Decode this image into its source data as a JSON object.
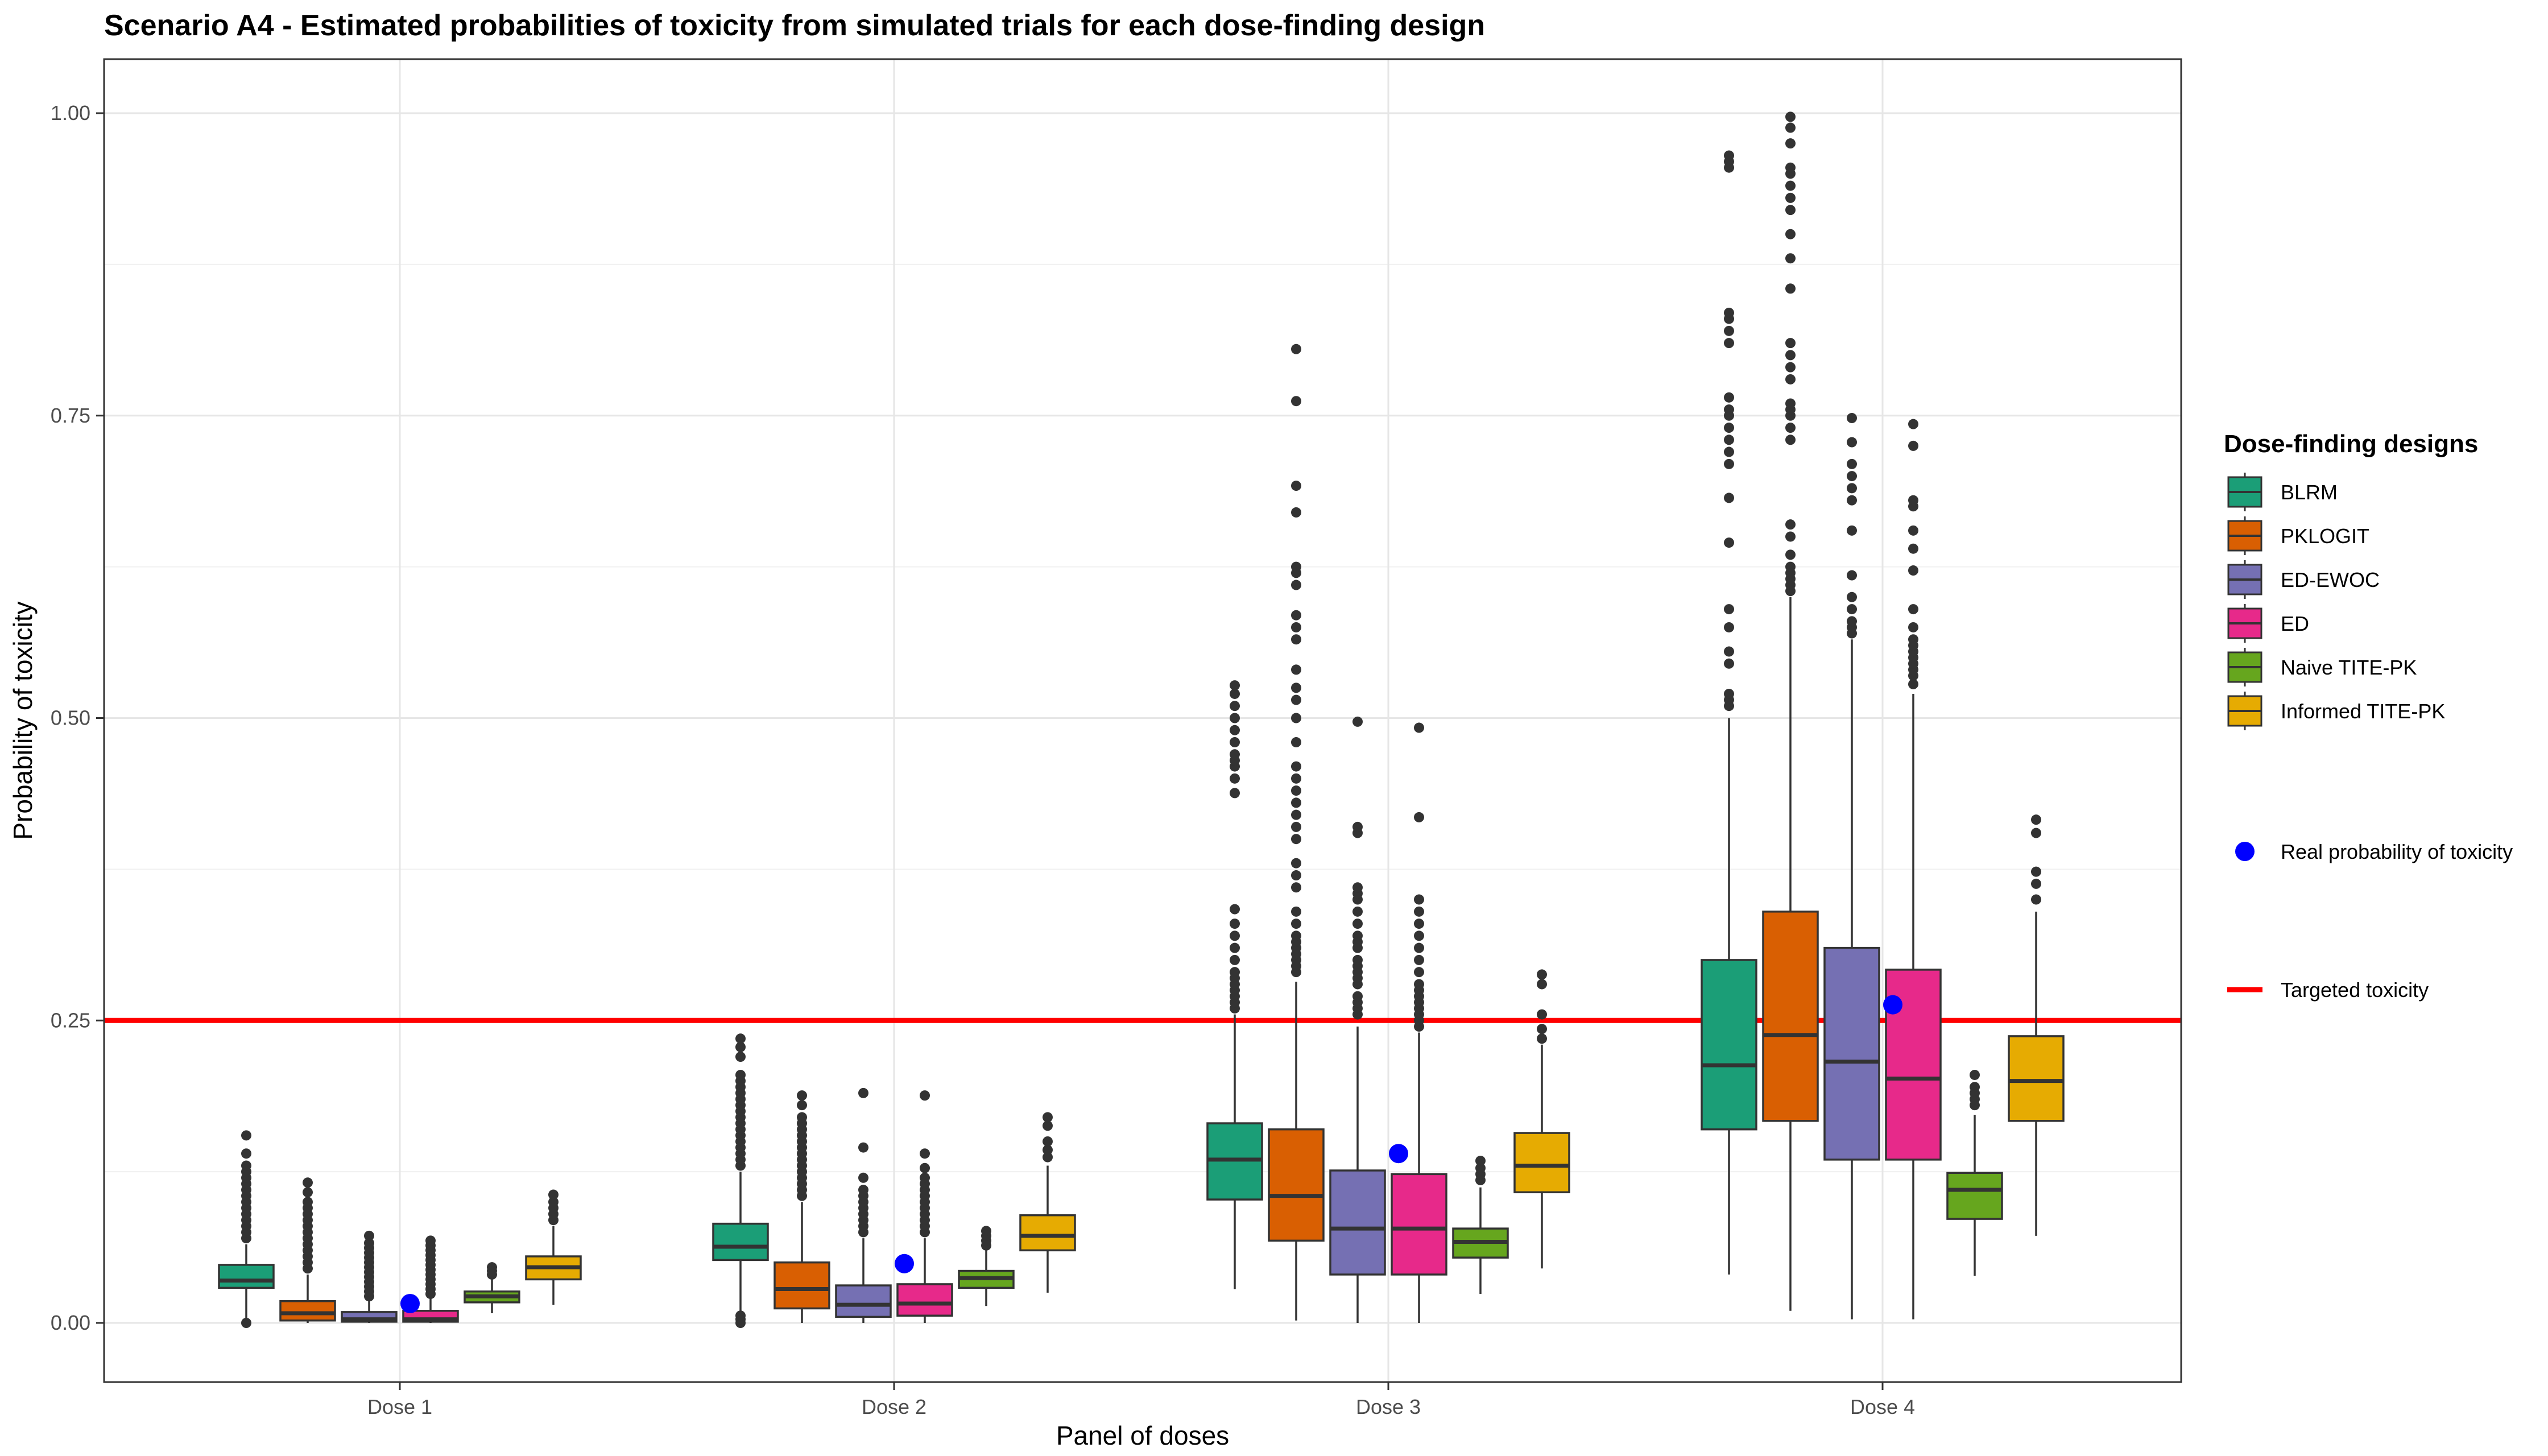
{
  "chart_data": {
    "type": "boxplot",
    "title": "Scenario A4 - Estimated probabilities of toxicity from simulated trials for each dose-finding design",
    "xlabel": "Panel of doses",
    "ylabel": "Probability of toxicity",
    "ylim": [
      -0.05,
      1.045
    ],
    "yticks": [
      0.0,
      0.25,
      0.5,
      0.75,
      1.0
    ],
    "ytick_labels": [
      "0.00",
      "0.25",
      "0.50",
      "0.75",
      "1.00"
    ],
    "categories": [
      "Dose 1",
      "Dose 2",
      "Dose 3",
      "Dose 4"
    ],
    "grid": true,
    "legend_position": "right",
    "legend_title": "Dose-finding designs",
    "series": [
      {
        "name": "BLRM",
        "color": "#1B9E77",
        "boxes": [
          {
            "q1": 0.029,
            "median": 0.035,
            "q3": 0.048,
            "lower": 0.0,
            "upper": 0.065,
            "outliers": [
              0.0,
              0.07,
              0.075,
              0.08,
              0.085,
              0.09,
              0.095,
              0.1,
              0.105,
              0.11,
              0.115,
              0.12,
              0.125,
              0.13,
              0.14,
              0.155
            ]
          },
          {
            "q1": 0.052,
            "median": 0.063,
            "q3": 0.082,
            "lower": 0.01,
            "upper": 0.125,
            "outliers": [
              0.0,
              0.003,
              0.006,
              0.13,
              0.135,
              0.14,
              0.145,
              0.15,
              0.155,
              0.16,
              0.165,
              0.17,
              0.175,
              0.18,
              0.185,
              0.19,
              0.195,
              0.2,
              0.205,
              0.22,
              0.228,
              0.235
            ]
          },
          {
            "q1": 0.102,
            "median": 0.135,
            "q3": 0.165,
            "lower": 0.028,
            "upper": 0.255,
            "outliers": [
              0.26,
              0.265,
              0.27,
              0.275,
              0.28,
              0.285,
              0.29,
              0.3,
              0.31,
              0.32,
              0.33,
              0.342,
              0.438,
              0.45,
              0.46,
              0.465,
              0.47,
              0.48,
              0.49,
              0.5,
              0.51,
              0.52,
              0.527
            ]
          },
          {
            "q1": 0.16,
            "median": 0.213,
            "q3": 0.3,
            "lower": 0.04,
            "upper": 0.5,
            "outliers": [
              0.51,
              0.515,
              0.52,
              0.545,
              0.555,
              0.575,
              0.59,
              0.645,
              0.682,
              0.71,
              0.72,
              0.73,
              0.74,
              0.75,
              0.755,
              0.765,
              0.81,
              0.82,
              0.83,
              0.835,
              0.955,
              0.96,
              0.965
            ]
          }
        ]
      },
      {
        "name": "PKLOGIT",
        "color": "#D95F02",
        "boxes": [
          {
            "q1": 0.002,
            "median": 0.008,
            "q3": 0.018,
            "lower": 0.0,
            "upper": 0.04,
            "outliers": [
              0.045,
              0.05,
              0.055,
              0.06,
              0.065,
              0.07,
              0.075,
              0.08,
              0.085,
              0.09,
              0.095,
              0.1,
              0.108,
              0.116
            ]
          },
          {
            "q1": 0.012,
            "median": 0.028,
            "q3": 0.05,
            "lower": 0.0,
            "upper": 0.1,
            "outliers": [
              0.105,
              0.11,
              0.115,
              0.12,
              0.125,
              0.13,
              0.135,
              0.14,
              0.145,
              0.15,
              0.155,
              0.16,
              0.165,
              0.17,
              0.18,
              0.188
            ]
          },
          {
            "q1": 0.068,
            "median": 0.105,
            "q3": 0.16,
            "lower": 0.002,
            "upper": 0.282,
            "outliers": [
              0.29,
              0.295,
              0.3,
              0.305,
              0.31,
              0.315,
              0.32,
              0.33,
              0.34,
              0.36,
              0.37,
              0.38,
              0.4,
              0.41,
              0.42,
              0.43,
              0.44,
              0.45,
              0.46,
              0.48,
              0.5,
              0.515,
              0.525,
              0.54,
              0.565,
              0.575,
              0.585,
              0.61,
              0.62,
              0.625,
              0.67,
              0.692,
              0.762,
              0.805
            ]
          },
          {
            "q1": 0.167,
            "median": 0.238,
            "q3": 0.34,
            "lower": 0.01,
            "upper": 0.6,
            "outliers": [
              0.605,
              0.61,
              0.615,
              0.62,
              0.625,
              0.635,
              0.65,
              0.66,
              0.73,
              0.74,
              0.75,
              0.755,
              0.76,
              0.78,
              0.79,
              0.8,
              0.81,
              0.855,
              0.88,
              0.9,
              0.92,
              0.93,
              0.94,
              0.95,
              0.955,
              0.975,
              0.988,
              0.997
            ]
          }
        ]
      },
      {
        "name": "ED-EWOC",
        "color": "#7570B3",
        "boxes": [
          {
            "q1": 0.001,
            "median": 0.003,
            "q3": 0.009,
            "lower": 0.0,
            "upper": 0.018,
            "outliers": [
              0.022,
              0.026,
              0.03,
              0.034,
              0.038,
              0.042,
              0.046,
              0.05,
              0.054,
              0.058,
              0.062,
              0.066,
              0.072
            ]
          },
          {
            "q1": 0.005,
            "median": 0.015,
            "q3": 0.031,
            "lower": 0.0,
            "upper": 0.07,
            "outliers": [
              0.075,
              0.08,
              0.085,
              0.09,
              0.095,
              0.1,
              0.105,
              0.11,
              0.12,
              0.145,
              0.19
            ]
          },
          {
            "q1": 0.04,
            "median": 0.078,
            "q3": 0.126,
            "lower": 0.0,
            "upper": 0.245,
            "outliers": [
              0.255,
              0.26,
              0.265,
              0.27,
              0.28,
              0.285,
              0.29,
              0.295,
              0.3,
              0.31,
              0.315,
              0.32,
              0.33,
              0.34,
              0.35,
              0.355,
              0.36,
              0.405,
              0.41,
              0.497
            ]
          },
          {
            "q1": 0.135,
            "median": 0.216,
            "q3": 0.31,
            "lower": 0.003,
            "upper": 0.565,
            "outliers": [
              0.57,
              0.575,
              0.58,
              0.59,
              0.6,
              0.618,
              0.655,
              0.68,
              0.69,
              0.7,
              0.71,
              0.728,
              0.748
            ]
          }
        ]
      },
      {
        "name": "ED",
        "color": "#E7298A",
        "boxes": [
          {
            "q1": 0.001,
            "median": 0.003,
            "q3": 0.01,
            "lower": 0.0,
            "upper": 0.02,
            "outliers": [
              0.024,
              0.028,
              0.032,
              0.036,
              0.04,
              0.044,
              0.048,
              0.052,
              0.056,
              0.06,
              0.064,
              0.068
            ]
          },
          {
            "q1": 0.006,
            "median": 0.016,
            "q3": 0.032,
            "lower": 0.0,
            "upper": 0.07,
            "outliers": [
              0.075,
              0.08,
              0.085,
              0.09,
              0.095,
              0.1,
              0.105,
              0.11,
              0.115,
              0.12,
              0.128,
              0.14,
              0.188
            ]
          },
          {
            "q1": 0.04,
            "median": 0.078,
            "q3": 0.123,
            "lower": 0.0,
            "upper": 0.24,
            "outliers": [
              0.245,
              0.25,
              0.255,
              0.26,
              0.265,
              0.27,
              0.275,
              0.28,
              0.29,
              0.3,
              0.31,
              0.32,
              0.33,
              0.34,
              0.35,
              0.418,
              0.492
            ]
          },
          {
            "q1": 0.135,
            "median": 0.202,
            "q3": 0.292,
            "lower": 0.003,
            "upper": 0.52,
            "outliers": [
              0.528,
              0.535,
              0.54,
              0.545,
              0.55,
              0.555,
              0.56,
              0.565,
              0.575,
              0.59,
              0.622,
              0.64,
              0.655,
              0.675,
              0.68,
              0.725,
              0.743
            ]
          }
        ]
      },
      {
        "name": "Naive TITE-PK",
        "color": "#66A61E",
        "boxes": [
          {
            "q1": 0.017,
            "median": 0.022,
            "q3": 0.026,
            "lower": 0.008,
            "upper": 0.038,
            "outliers": [
              0.04,
              0.043,
              0.046
            ]
          },
          {
            "q1": 0.029,
            "median": 0.037,
            "q3": 0.043,
            "lower": 0.014,
            "upper": 0.06,
            "outliers": [
              0.064,
              0.068,
              0.072,
              0.076
            ]
          },
          {
            "q1": 0.054,
            "median": 0.067,
            "q3": 0.078,
            "lower": 0.024,
            "upper": 0.112,
            "outliers": [
              0.118,
              0.123,
              0.128,
              0.134
            ]
          },
          {
            "q1": 0.086,
            "median": 0.11,
            "q3": 0.124,
            "lower": 0.039,
            "upper": 0.172,
            "outliers": [
              0.18,
              0.185,
              0.19,
              0.195,
              0.205
            ]
          }
        ]
      },
      {
        "name": "Informed TITE-PK",
        "color": "#E6AB02",
        "boxes": [
          {
            "q1": 0.036,
            "median": 0.046,
            "q3": 0.055,
            "lower": 0.015,
            "upper": 0.08,
            "outliers": [
              0.085,
              0.09,
              0.095,
              0.1,
              0.106
            ]
          },
          {
            "q1": 0.06,
            "median": 0.072,
            "q3": 0.089,
            "lower": 0.025,
            "upper": 0.13,
            "outliers": [
              0.137,
              0.143,
              0.15,
              0.163,
              0.17
            ]
          },
          {
            "q1": 0.108,
            "median": 0.13,
            "q3": 0.157,
            "lower": 0.045,
            "upper": 0.23,
            "outliers": [
              0.235,
              0.243,
              0.255,
              0.28,
              0.288
            ]
          },
          {
            "q1": 0.167,
            "median": 0.2,
            "q3": 0.237,
            "lower": 0.072,
            "upper": 0.34,
            "outliers": [
              0.35,
              0.363,
              0.373,
              0.405,
              0.416
            ]
          }
        ]
      }
    ],
    "real_probability": {
      "label": "Real probability of toxicity",
      "color": "#0000FF",
      "values": [
        0.016,
        0.049,
        0.14,
        0.263
      ]
    },
    "target": {
      "label": "Targeted toxicity",
      "color": "#FF0000",
      "value": 0.25
    }
  }
}
